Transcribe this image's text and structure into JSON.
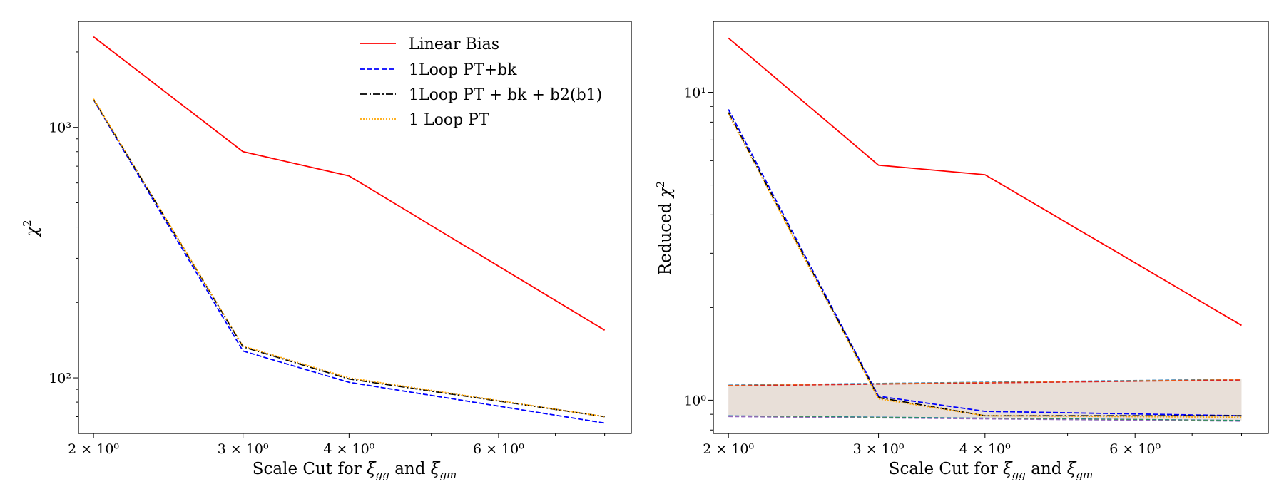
{
  "chart_data": [
    {
      "type": "line",
      "xscale": "log",
      "yscale": "log",
      "xlim": [
        1.92,
        8.6
      ],
      "ylim": [
        60,
        2650
      ],
      "xlabel": "Scale Cut for ξgg and ξgm",
      "ylabel": "χ²",
      "x_ticks": [
        {
          "value": 2,
          "label": "2 × 10⁰"
        },
        {
          "value": 3,
          "label": "3 × 10⁰"
        },
        {
          "value": 4,
          "label": "4 × 10⁰"
        },
        {
          "value": 6,
          "label": "6 × 10⁰"
        }
      ],
      "y_ticks": [
        {
          "value": 100,
          "label": "10²"
        },
        {
          "value": 1000,
          "label": "10³"
        }
      ],
      "legend_position": "top-right",
      "x": [
        2,
        3,
        4,
        8
      ],
      "series": [
        {
          "name": "Linear Bias",
          "color": "#ff0000",
          "dash": "solid",
          "values": [
            2300,
            800,
            640,
            155
          ]
        },
        {
          "name": "1Loop PT+bk",
          "color": "#0000ff",
          "dash": "dashed",
          "values": [
            1290,
            128,
            96,
            66
          ]
        },
        {
          "name": "1Loop PT + bk + b2(b1)",
          "color": "#000000",
          "dash": "dashdot",
          "values": [
            1295,
            133,
            99,
            70
          ]
        },
        {
          "name": "1 Loop PT",
          "color": "#ffa500",
          "dash": "dotted",
          "values": [
            1300,
            134,
            100,
            70
          ]
        }
      ]
    },
    {
      "type": "line",
      "xscale": "log",
      "yscale": "log",
      "xlim": [
        1.92,
        8.6
      ],
      "ylim": [
        0.78,
        17
      ],
      "xlabel": "Scale Cut for ξgg and ξgm",
      "ylabel": "Reduced χ²",
      "x_ticks": [
        {
          "value": 2,
          "label": "2 × 10⁰"
        },
        {
          "value": 3,
          "label": "3 × 10⁰"
        },
        {
          "value": 4,
          "label": "4 × 10⁰"
        },
        {
          "value": 6,
          "label": "6 × 10⁰"
        }
      ],
      "y_ticks": [
        {
          "value": 1,
          "label": "10⁰"
        },
        {
          "value": 10,
          "label": "10¹"
        }
      ],
      "x": [
        2,
        3,
        4,
        8
      ],
      "series": [
        {
          "name": "Linear Bias",
          "color": "#ff0000",
          "dash": "solid",
          "values": [
            15,
            5.8,
            5.4,
            1.75
          ]
        },
        {
          "name": "1Loop PT+bk",
          "color": "#0000ff",
          "dash": "dashed",
          "values": [
            8.8,
            1.03,
            0.92,
            0.89
          ]
        },
        {
          "name": "1Loop PT + bk + b2(b1)",
          "color": "#000000",
          "dash": "dashdot",
          "values": [
            8.6,
            1.02,
            0.89,
            0.89
          ]
        },
        {
          "name": "1 Loop PT",
          "color": "#ffa500",
          "dash": "dotted",
          "values": [
            8.5,
            1.01,
            0.89,
            0.88
          ]
        }
      ],
      "band": {
        "color": "#e8dfd8",
        "x": [
          2,
          8
        ],
        "upper": [
          1.12,
          1.17
        ],
        "lower": [
          0.89,
          0.86
        ],
        "upper_line_colors": [
          "#1f77b4",
          "#ff7f0e",
          "#d62728"
        ],
        "lower_line_colors": [
          "#1f77b4",
          "#2ca02c",
          "#9467bd"
        ]
      }
    }
  ]
}
